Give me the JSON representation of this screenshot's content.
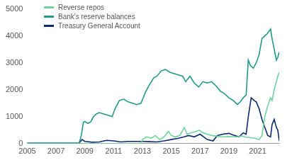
{
  "chart_data": {
    "type": "line",
    "legend": "upper left",
    "grid": false,
    "xlim": [
      2005,
      2022.5
    ],
    "xticks": [
      2005,
      2007,
      2009,
      2011,
      2013,
      2015,
      2017,
      2019,
      2021
    ],
    "ylim": [
      0,
      5000
    ],
    "yticks": [
      0,
      1000,
      2000,
      3000,
      4000,
      5000
    ],
    "series": [
      {
        "name": "Reverse repos",
        "color": "#6fd39c",
        "x": [
          2005,
          2012.9,
          2013.0,
          2013.3,
          2013.6,
          2013.9,
          2014.2,
          2014.5,
          2014.8,
          2015.0,
          2015.3,
          2015.6,
          2015.9,
          2016.1,
          2016.4,
          2016.7,
          2016.95,
          2017.2,
          2017.5,
          2017.8,
          2018.1,
          2018.4,
          2018.7,
          2019.0,
          2019.3,
          2019.6,
          2019.9,
          2020.2,
          2020.5,
          2020.8,
          2021.1,
          2021.3,
          2021.5,
          2021.7,
          2021.9,
          2022.0,
          2022.15,
          2022.3,
          2022.4,
          2022.5
        ],
        "values": [
          0,
          0,
          150,
          250,
          200,
          300,
          150,
          250,
          450,
          300,
          250,
          300,
          600,
          350,
          400,
          450,
          500,
          400,
          350,
          300,
          280,
          250,
          250,
          260,
          250,
          250,
          280,
          240,
          220,
          200,
          150,
          300,
          1000,
          1400,
          1700,
          1600,
          2000,
          2300,
          2500,
          2650
        ]
      },
      {
        "name": "Bank's reserve balances",
        "color": "#1f9a8a",
        "x": [
          2005,
          2006,
          2007,
          2008.6,
          2008.75,
          2008.9,
          2009.0,
          2009.2,
          2009.4,
          2009.6,
          2009.8,
          2010.0,
          2010.3,
          2010.6,
          2010.9,
          2011.1,
          2011.4,
          2011.7,
          2012.0,
          2012.3,
          2012.6,
          2012.9,
          2013.2,
          2013.5,
          2013.8,
          2014.0,
          2014.3,
          2014.6,
          2014.9,
          2015.2,
          2015.5,
          2015.8,
          2016.0,
          2016.3,
          2016.6,
          2016.9,
          2017.2,
          2017.5,
          2017.8,
          2018.1,
          2018.4,
          2018.7,
          2019.0,
          2019.3,
          2019.6,
          2019.8,
          2020.0,
          2020.2,
          2020.35,
          2020.5,
          2020.7,
          2020.9,
          2021.1,
          2021.3,
          2021.5,
          2021.7,
          2021.9,
          2022.0,
          2022.15,
          2022.3,
          2022.4,
          2022.5
        ],
        "values": [
          10,
          10,
          10,
          10,
          300,
          800,
          820,
          750,
          800,
          1000,
          1100,
          1150,
          1100,
          1050,
          1000,
          1300,
          1600,
          1650,
          1550,
          1500,
          1450,
          1500,
          1900,
          2200,
          2450,
          2500,
          2700,
          2750,
          2650,
          2600,
          2550,
          2500,
          2300,
          2500,
          2250,
          2100,
          2300,
          2250,
          2300,
          2150,
          1950,
          1850,
          1700,
          1600,
          1450,
          1550,
          1700,
          1800,
          3100,
          2900,
          2800,
          3000,
          3300,
          3900,
          4000,
          4100,
          4250,
          3900,
          3500,
          3100,
          3200,
          3400
        ]
      },
      {
        "name": "Treasury General Account",
        "color": "#0b2a6f",
        "x": [
          2005,
          2008.6,
          2008.8,
          2009.0,
          2009.5,
          2010.0,
          2010.5,
          2011.0,
          2011.5,
          2012.0,
          2012.5,
          2013.0,
          2013.5,
          2014.0,
          2014.5,
          2015.0,
          2015.5,
          2015.9,
          2016.2,
          2016.6,
          2017.0,
          2017.5,
          2017.9,
          2018.2,
          2018.6,
          2019.0,
          2019.4,
          2019.7,
          2020.0,
          2020.2,
          2020.35,
          2020.55,
          2020.75,
          2020.9,
          2021.1,
          2021.3,
          2021.5,
          2021.7,
          2021.9,
          2022.0,
          2022.15,
          2022.3,
          2022.4,
          2022.5
        ],
        "values": [
          10,
          10,
          150,
          80,
          50,
          60,
          120,
          100,
          60,
          80,
          80,
          80,
          70,
          60,
          100,
          150,
          200,
          250,
          300,
          250,
          350,
          150,
          100,
          300,
          350,
          380,
          300,
          250,
          400,
          350,
          1000,
          1700,
          1600,
          1550,
          1300,
          900,
          600,
          300,
          250,
          700,
          900,
          600,
          500,
          100
        ]
      }
    ]
  }
}
